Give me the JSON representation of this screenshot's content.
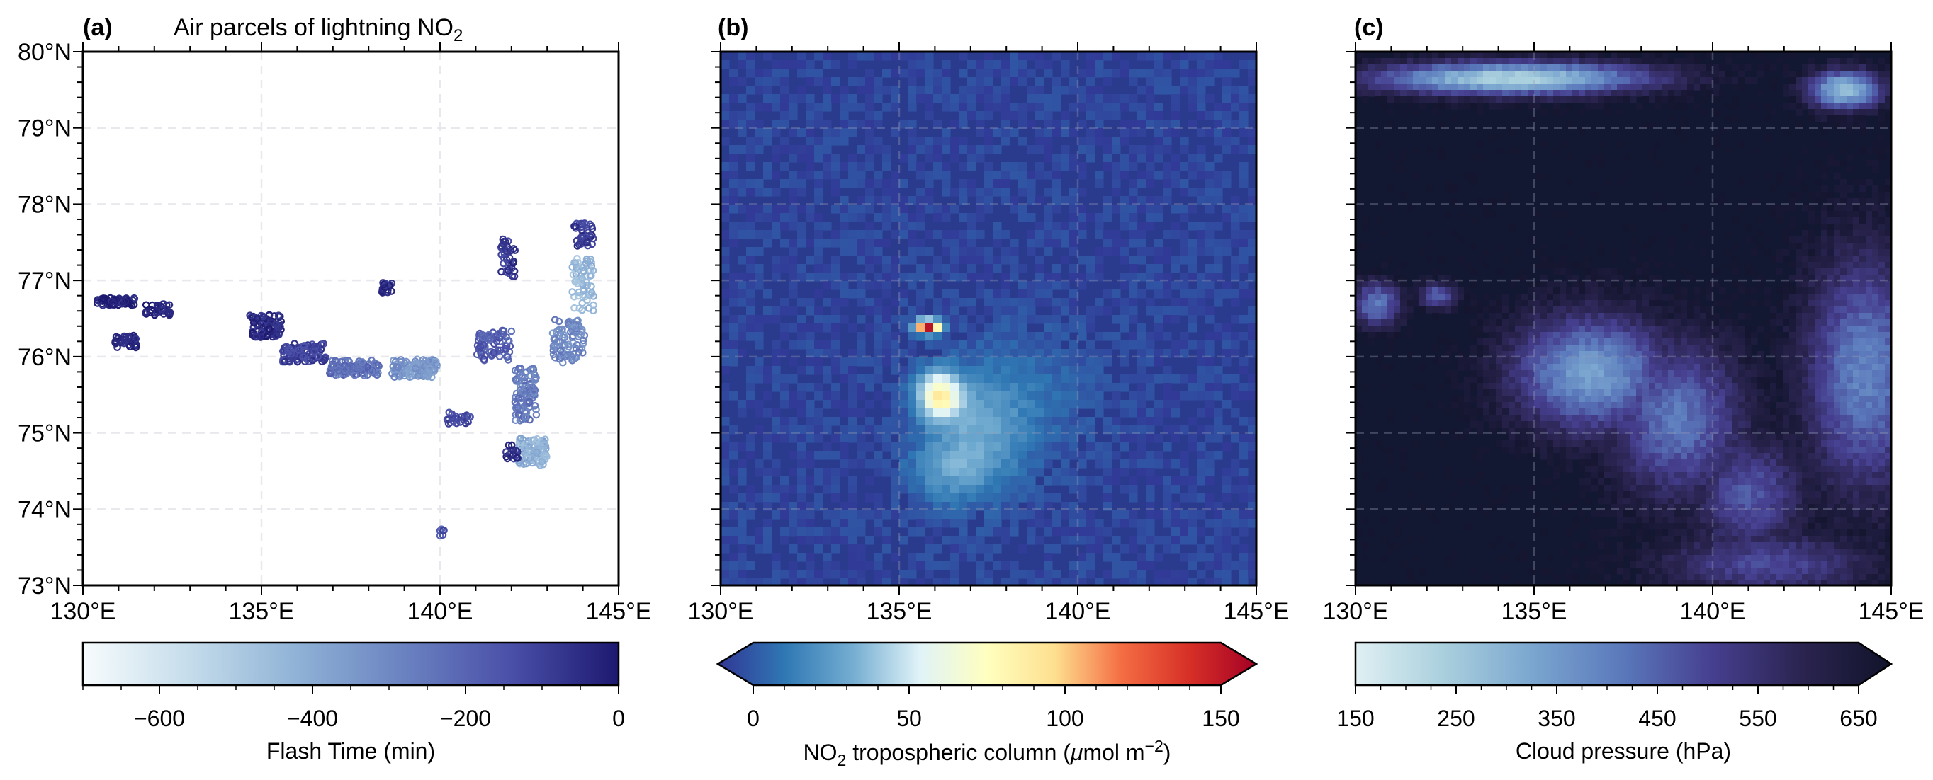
{
  "figure": {
    "panels": [
      {
        "label": "(a)",
        "title_main": "Air parcels of lightning NO",
        "title_sub": "2"
      },
      {
        "label": "(b)"
      },
      {
        "label": "(c)"
      }
    ]
  },
  "colors": {
    "panel_a_background": "#ffffff",
    "panel_b_background": "#2a3a8c",
    "panel_c_background": "#121832",
    "gridline": "#9aa0b8"
  },
  "chart_data": [
    {
      "type": "scatter",
      "panel": "(a)",
      "title": "Air parcels of lightning NO2",
      "xlabel": "",
      "ylabel": "",
      "xlim": [
        130,
        145
      ],
      "ylim": [
        73,
        80
      ],
      "x_ticks": [
        "130°E",
        "135°E",
        "140°E",
        "145°E"
      ],
      "y_ticks": [
        "73°N",
        "74°N",
        "75°N",
        "76°N",
        "77°N",
        "78°N",
        "79°N",
        "80°N"
      ],
      "grid": true,
      "colorbar": {
        "label": "Flash Time (min)",
        "range": [
          -700,
          0
        ],
        "ticks": [
          "−600",
          "−400",
          "−200",
          "0"
        ],
        "tick_values": [
          -600,
          -400,
          -200,
          0
        ],
        "colormap": [
          "#f7fcfd",
          "#c5dceb",
          "#8fb2d6",
          "#6a82c0",
          "#4a4fa8",
          "#1d1970"
        ],
        "extend": "neither"
      },
      "clusters": [
        {
          "lon": 130.9,
          "lat": 76.72,
          "lon_spread": 0.55,
          "lat_spread": 0.05,
          "n": 60,
          "time": -10
        },
        {
          "lon": 131.2,
          "lat": 76.2,
          "lon_spread": 0.3,
          "lat_spread": 0.08,
          "n": 40,
          "time": -20
        },
        {
          "lon": 132.1,
          "lat": 76.62,
          "lon_spread": 0.35,
          "lat_spread": 0.08,
          "n": 30,
          "time": -15
        },
        {
          "lon": 135.1,
          "lat": 76.4,
          "lon_spread": 0.45,
          "lat_spread": 0.15,
          "n": 90,
          "time": -30
        },
        {
          "lon": 136.2,
          "lat": 76.05,
          "lon_spread": 0.6,
          "lat_spread": 0.12,
          "n": 90,
          "time": -110
        },
        {
          "lon": 137.6,
          "lat": 75.85,
          "lon_spread": 0.7,
          "lat_spread": 0.1,
          "n": 110,
          "time": -230
        },
        {
          "lon": 139.3,
          "lat": 75.85,
          "lon_spread": 0.65,
          "lat_spread": 0.12,
          "n": 110,
          "time": -340
        },
        {
          "lon": 138.5,
          "lat": 76.9,
          "lon_spread": 0.15,
          "lat_spread": 0.07,
          "n": 18,
          "time": -40
        },
        {
          "lon": 140.5,
          "lat": 75.2,
          "lon_spread": 0.35,
          "lat_spread": 0.08,
          "n": 25,
          "time": -120
        },
        {
          "lon": 141.5,
          "lat": 76.15,
          "lon_spread": 0.5,
          "lat_spread": 0.2,
          "n": 70,
          "time": -180
        },
        {
          "lon": 141.9,
          "lat": 77.3,
          "lon_spread": 0.2,
          "lat_spread": 0.25,
          "n": 35,
          "time": -80
        },
        {
          "lon": 142.4,
          "lat": 75.5,
          "lon_spread": 0.3,
          "lat_spread": 0.35,
          "n": 90,
          "time": -260
        },
        {
          "lon": 142.6,
          "lat": 74.75,
          "lon_spread": 0.4,
          "lat_spread": 0.18,
          "n": 90,
          "time": -420
        },
        {
          "lon": 143.6,
          "lat": 76.2,
          "lon_spread": 0.45,
          "lat_spread": 0.3,
          "n": 80,
          "time": -300
        },
        {
          "lon": 144.0,
          "lat": 76.95,
          "lon_spread": 0.3,
          "lat_spread": 0.35,
          "n": 60,
          "time": -450
        },
        {
          "lon": 144.0,
          "lat": 77.6,
          "lon_spread": 0.3,
          "lat_spread": 0.15,
          "n": 40,
          "time": -90
        },
        {
          "lon": 142.0,
          "lat": 74.75,
          "lon_spread": 0.2,
          "lat_spread": 0.1,
          "n": 15,
          "time": -70
        },
        {
          "lon": 140.0,
          "lat": 73.7,
          "lon_spread": 0.15,
          "lat_spread": 0.05,
          "n": 6,
          "time": -160
        }
      ]
    },
    {
      "type": "heatmap",
      "panel": "(b)",
      "xlabel": "",
      "ylabel": "",
      "xlim": [
        130,
        145
      ],
      "ylim": [
        73,
        80
      ],
      "x_ticks": [
        "130°E",
        "135°E",
        "140°E",
        "145°E"
      ],
      "grid": true,
      "background_value": 5,
      "colorbar": {
        "label_main": "NO",
        "label_sub": "2",
        "label_rest": " tropospheric column (",
        "label_mu": "μ",
        "label_unit": "mol m",
        "label_sup": "−2",
        "label_close": ")",
        "range": [
          0,
          150
        ],
        "ticks": [
          "0",
          "50",
          "100",
          "150"
        ],
        "tick_values": [
          0,
          50,
          100,
          150
        ],
        "colormap": [
          "#313695",
          "#2f78b4",
          "#74add1",
          "#e0f3f8",
          "#ffffbf",
          "#fee090",
          "#f46d43",
          "#d73027",
          "#a50026"
        ],
        "extend": "both"
      },
      "features": [
        {
          "lon": 136.1,
          "lat": 75.5,
          "radius_lon": 0.7,
          "radius_lat": 0.35,
          "peak": 75
        },
        {
          "lon": 137.2,
          "lat": 75.0,
          "radius_lon": 1.6,
          "radius_lat": 0.9,
          "peak": 32
        },
        {
          "lon": 138.8,
          "lat": 75.6,
          "radius_lon": 2.0,
          "radius_lat": 0.9,
          "peak": 14
        },
        {
          "lon": 135.8,
          "lat": 76.4,
          "radius_lon": 0.4,
          "radius_lat": 0.1,
          "peak": 145
        },
        {
          "lon": 136.3,
          "lat": 74.5,
          "radius_lon": 1.3,
          "radius_lat": 0.45,
          "peak": 22
        },
        {
          "lon": 135.7,
          "lat": 79.55,
          "radius_lon": 0.3,
          "radius_lat": 0.04,
          "peak": 30
        }
      ]
    },
    {
      "type": "heatmap",
      "panel": "(c)",
      "xlabel": "",
      "ylabel": "",
      "xlim": [
        130,
        145
      ],
      "ylim": [
        73,
        80
      ],
      "x_ticks": [
        "130°E",
        "135°E",
        "140°E",
        "145°E"
      ],
      "grid": true,
      "background_value": 660,
      "colorbar": {
        "label": "Cloud pressure (hPa)",
        "range": [
          150,
          650
        ],
        "ticks": [
          "150",
          "250",
          "350",
          "450",
          "550",
          "650"
        ],
        "tick_values": [
          150,
          250,
          350,
          450,
          550,
          650
        ],
        "colormap": [
          "#e0f0f3",
          "#a9cfdd",
          "#7aa5cf",
          "#5a78bb",
          "#463f8f",
          "#2a2450",
          "#11132a"
        ],
        "extend": "max"
      },
      "features": [
        {
          "lon": 136.6,
          "lat": 75.8,
          "radius_lon": 2.6,
          "radius_lat": 0.9,
          "peak": 330
        },
        {
          "lon": 139.0,
          "lat": 75.2,
          "radius_lon": 2.2,
          "radius_lat": 1.2,
          "peak": 400
        },
        {
          "lon": 144.3,
          "lat": 75.8,
          "radius_lon": 2.0,
          "radius_lat": 1.8,
          "peak": 380
        },
        {
          "lon": 141.0,
          "lat": 74.2,
          "radius_lon": 1.8,
          "radius_lat": 0.9,
          "peak": 450
        },
        {
          "lon": 130.6,
          "lat": 76.7,
          "radius_lon": 0.8,
          "radius_lat": 0.35,
          "peak": 390
        },
        {
          "lon": 132.3,
          "lat": 76.8,
          "radius_lon": 0.6,
          "radius_lat": 0.2,
          "peak": 420
        },
        {
          "lon": 134.4,
          "lat": 79.65,
          "radius_lon": 4.5,
          "radius_lat": 0.25,
          "peak": 220
        },
        {
          "lon": 143.7,
          "lat": 79.5,
          "radius_lon": 1.2,
          "radius_lat": 0.3,
          "peak": 260
        },
        {
          "lon": 141.5,
          "lat": 73.3,
          "radius_lon": 3.5,
          "radius_lat": 0.5,
          "peak": 470
        }
      ]
    }
  ]
}
